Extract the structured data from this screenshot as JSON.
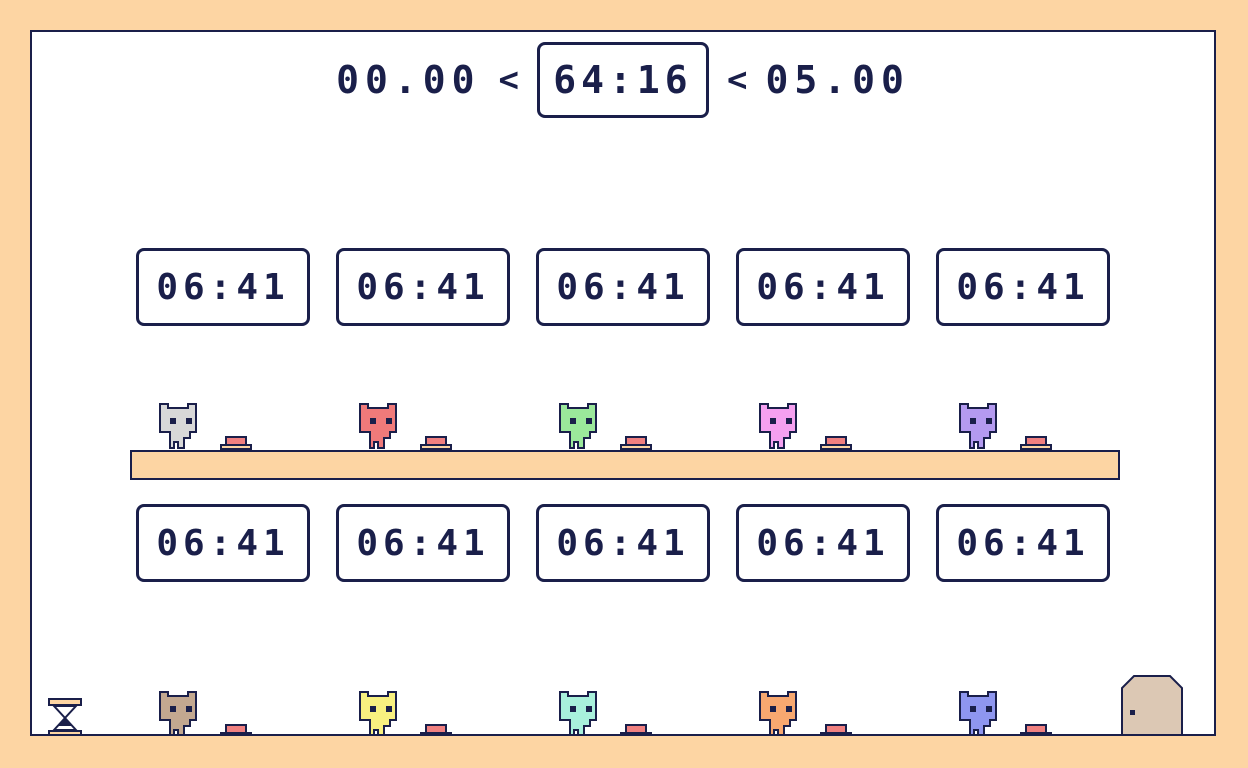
{
  "header": {
    "range_start": "00.00",
    "range_sep_left": "<",
    "current_time": "64:16",
    "range_sep_right": "<",
    "range_end": "05.00"
  },
  "top_timers": [
    "06:41",
    "06:41",
    "06:41",
    "06:41",
    "06:41"
  ],
  "bottom_timers": [
    "06:41",
    "06:41",
    "06:41",
    "06:41",
    "06:41"
  ],
  "colors": {
    "background": "#fdd5a3",
    "outline": "#1a1f4a",
    "button": "#f08080",
    "door": "#dcc8b4",
    "upper_cats": [
      "#d8d8d8",
      "#f07a7a",
      "#9be89b",
      "#f5a0f0",
      "#b49af0"
    ],
    "lower_cats": [
      "#c3a890",
      "#f8f080",
      "#a8f0dc",
      "#f8a870",
      "#8e96f0"
    ]
  },
  "icons": {
    "cat": "cat-icon",
    "button": "pressure-button-icon",
    "hourglass": "hourglass-icon",
    "door": "door-icon"
  }
}
